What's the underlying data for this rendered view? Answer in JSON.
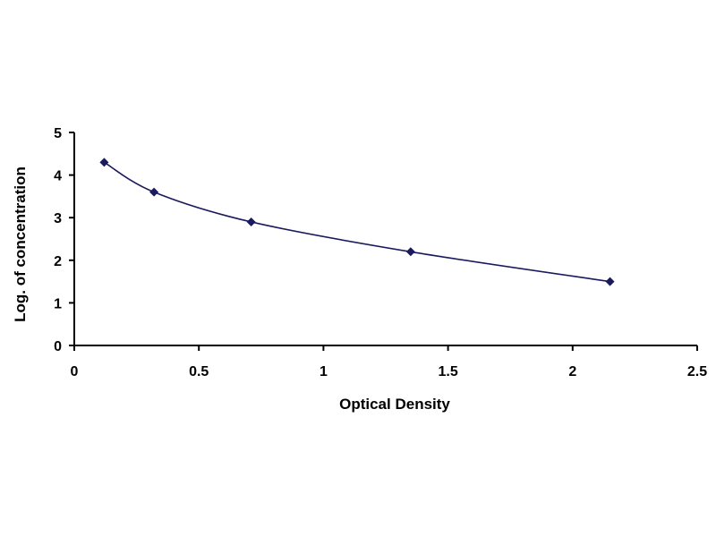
{
  "chart_data": {
    "type": "line",
    "title": "",
    "xlabel": "Optical Density",
    "ylabel": "Log. of concentration",
    "xlim": [
      0,
      2.5
    ],
    "ylim": [
      0,
      5
    ],
    "x_ticks": [
      "0",
      "0.5",
      "1",
      "1.5",
      "2",
      "2.5"
    ],
    "y_ticks": [
      "0",
      "1",
      "2",
      "3",
      "4",
      "5"
    ],
    "grid": false,
    "legend": "none",
    "series": [
      {
        "x": [
          0.12,
          0.32,
          0.71,
          1.35,
          2.15
        ],
        "y": [
          4.3,
          3.6,
          2.9,
          2.2,
          1.5
        ],
        "color": "#1a1a5e",
        "marker": "diamond",
        "smooth": true
      }
    ]
  }
}
